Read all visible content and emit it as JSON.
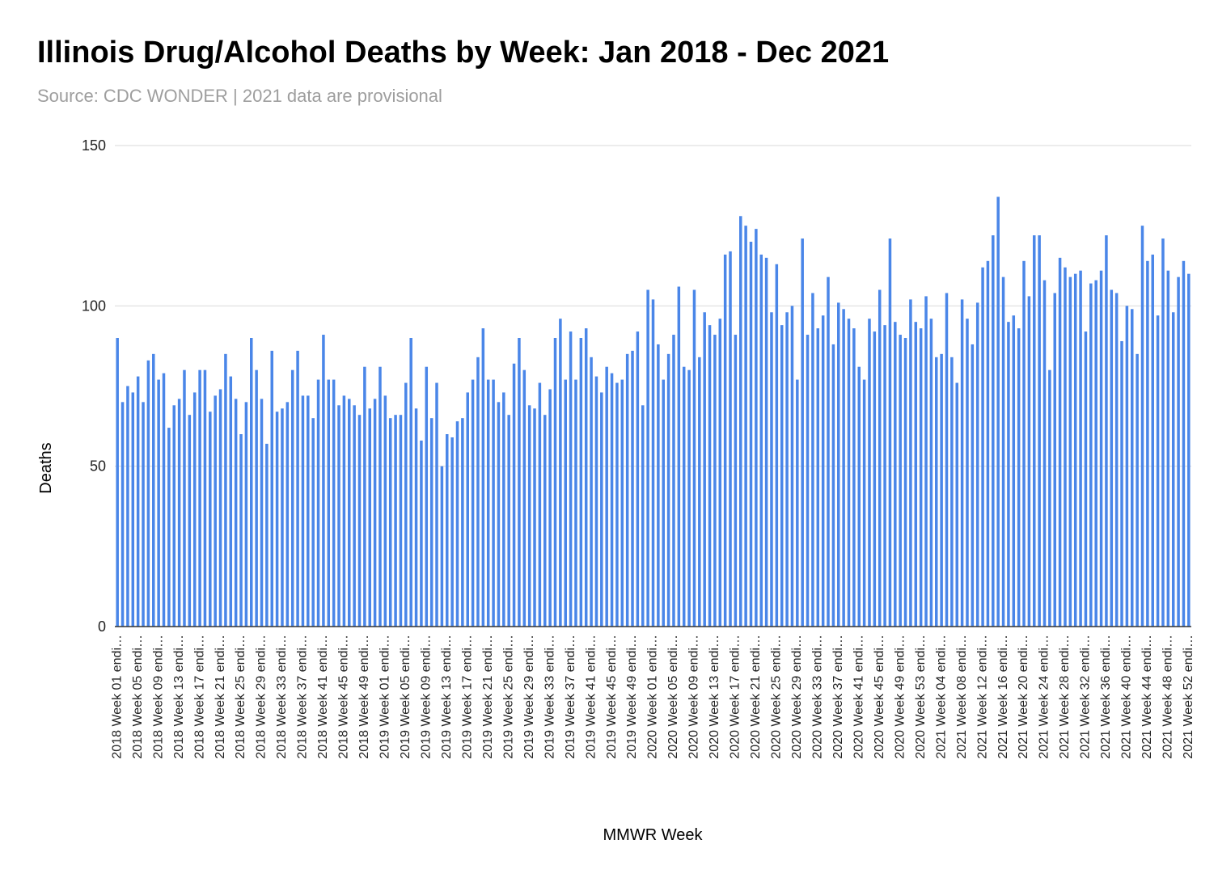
{
  "chart_data": {
    "type": "bar",
    "title": "Illinois Drug/Alcohol Deaths by Week: Jan 2018 - Dec 2021",
    "subtitle": "Source: CDC WONDER | 2021 data are provisional",
    "xlabel": "MMWR Week",
    "ylabel": "Deaths",
    "ylim": [
      0,
      150
    ],
    "yticks": [
      0,
      50,
      100,
      150
    ],
    "grid": true,
    "legend": "none",
    "bar_color": "#4a86e8",
    "tick_labels": [
      "2018 Week 01 endi…",
      "2018 Week 05 endi…",
      "2018 Week 09 endi…",
      "2018 Week 13 endi…",
      "2018 Week 17 endi…",
      "2018 Week 21 endi…",
      "2018 Week 25 endi…",
      "2018 Week 29 endi…",
      "2018 Week 33 endi…",
      "2018 Week 37 endi…",
      "2018 Week 41 endi…",
      "2018 Week 45 endi…",
      "2018 Week 49 endi…",
      "2019 Week 01 endi…",
      "2019 Week 05 endi…",
      "2019 Week 09 endi…",
      "2019 Week 13 endi…",
      "2019 Week 17 endi…",
      "2019 Week 21 endi…",
      "2019 Week 25 endi…",
      "2019 Week 29 endi…",
      "2019 Week 33 endi…",
      "2019 Week 37 endi…",
      "2019 Week 41 endi…",
      "2019 Week 45 endi…",
      "2019 Week 49 endi…",
      "2020 Week 01 endi…",
      "2020 Week 05 endi…",
      "2020 Week 09 endi…",
      "2020 Week 13 endi…",
      "2020 Week 17 endi…",
      "2020 Week 21 endi…",
      "2020 Week 25 endi…",
      "2020 Week 29 endi…",
      "2020 Week 33 endi…",
      "2020 Week 37 endi…",
      "2020 Week 41 endi…",
      "2020 Week 45 endi…",
      "2020 Week 49 endi…",
      "2020 Week 53 endi…",
      "2021 Week 04 endi…",
      "2021 Week 08 endi…",
      "2021 Week 12 endi…",
      "2021 Week 16 endi…",
      "2021 Week 20 endi…",
      "2021 Week 24 endi…",
      "2021 Week 28 endi…",
      "2021 Week 32 endi…",
      "2021 Week 36 endi…",
      "2021 Week 40 endi…",
      "2021 Week 44 endi…",
      "2021 Week 48 endi…",
      "2021 Week 52 endi…"
    ],
    "values": [
      90,
      70,
      75,
      73,
      78,
      70,
      83,
      85,
      77,
      79,
      62,
      69,
      71,
      80,
      66,
      73,
      80,
      80,
      67,
      72,
      74,
      85,
      78,
      71,
      60,
      70,
      90,
      80,
      71,
      57,
      86,
      67,
      68,
      70,
      80,
      86,
      72,
      72,
      65,
      77,
      91,
      77,
      77,
      69,
      72,
      71,
      69,
      66,
      81,
      68,
      71,
      81,
      72,
      65,
      66,
      66,
      76,
      90,
      68,
      58,
      81,
      65,
      76,
      50,
      60,
      59,
      64,
      65,
      73,
      77,
      84,
      93,
      77,
      77,
      70,
      73,
      66,
      82,
      90,
      80,
      69,
      68,
      76,
      66,
      74,
      90,
      96,
      77,
      92,
      77,
      90,
      93,
      84,
      78,
      73,
      81,
      79,
      76,
      77,
      85,
      86,
      92,
      69,
      105,
      102,
      88,
      77,
      85,
      91,
      106,
      81,
      80,
      105,
      84,
      98,
      94,
      91,
      96,
      116,
      117,
      91,
      128,
      125,
      120,
      124,
      116,
      115,
      98,
      113,
      94,
      98,
      100,
      77,
      121,
      91,
      104,
      93,
      97,
      109,
      88,
      101,
      99,
      96,
      93,
      81,
      77,
      96,
      92,
      105,
      94,
      121,
      95,
      91,
      90,
      102,
      95,
      93,
      103,
      96,
      84,
      85,
      104,
      84,
      76,
      102,
      96,
      88,
      101,
      112,
      114,
      122,
      134,
      109,
      95,
      97,
      93,
      114,
      103,
      122,
      122,
      108,
      80,
      104,
      115,
      112,
      109,
      110,
      111,
      92,
      107,
      108,
      111,
      122,
      105,
      104,
      89,
      100,
      99,
      85,
      125,
      114,
      116,
      97,
      121,
      111,
      98,
      109,
      114,
      110
    ]
  }
}
